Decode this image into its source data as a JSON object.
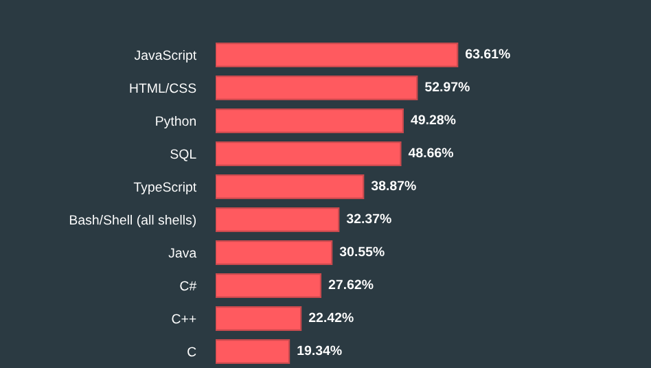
{
  "chart_data": {
    "type": "bar",
    "orientation": "horizontal",
    "categories": [
      "JavaScript",
      "HTML/CSS",
      "Python",
      "SQL",
      "TypeScript",
      "Bash/Shell (all shells)",
      "Java",
      "C#",
      "C++",
      "C"
    ],
    "values": [
      63.61,
      52.97,
      49.28,
      48.66,
      38.87,
      32.37,
      30.55,
      27.62,
      22.42,
      19.34
    ],
    "value_labels": [
      "63.61%",
      "52.97%",
      "49.28%",
      "48.66%",
      "38.87%",
      "32.37%",
      "30.55%",
      "27.62%",
      "22.42%",
      "19.34%"
    ],
    "color": "#ff5a5f",
    "grid": false
  }
}
